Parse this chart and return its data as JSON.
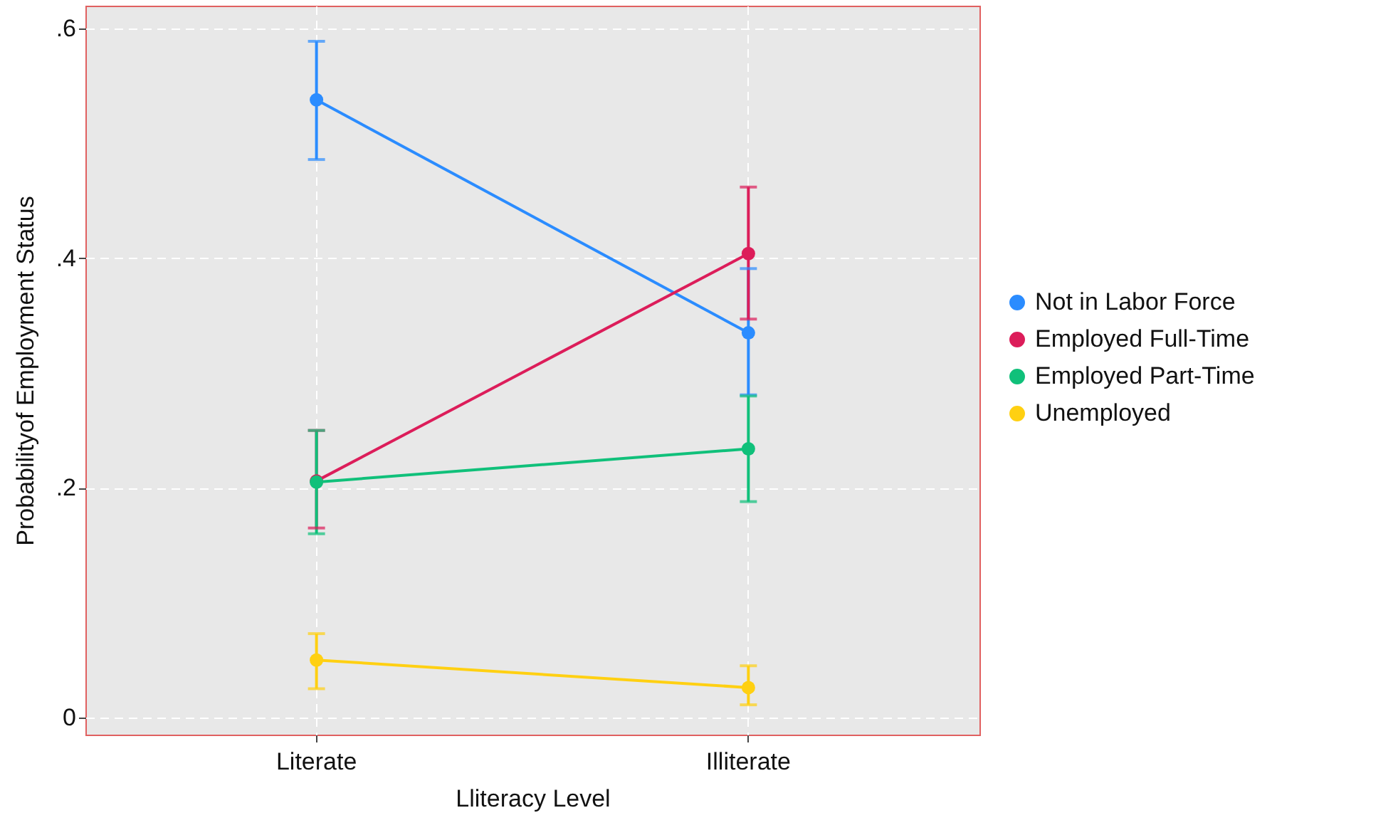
{
  "chart_data": {
    "type": "line",
    "xlabel": "Lliteracy Level",
    "ylabel": "Probabilityof Employment Status",
    "categories": [
      "Literate",
      "Illiterate"
    ],
    "series": [
      {
        "name": "Not in Labor Force",
        "color": "#2b8cff",
        "values": [
          0.538,
          0.335
        ],
        "errors": [
          [
            0.486,
            0.589
          ],
          [
            0.281,
            0.391
          ]
        ]
      },
      {
        "name": "Employed Full-Time",
        "color": "#dc1d5a",
        "values": [
          0.206,
          0.404
        ],
        "errors": [
          [
            0.165,
            0.25
          ],
          [
            0.347,
            0.462
          ]
        ]
      },
      {
        "name": "Employed Part-Time",
        "color": "#10c07a",
        "values": [
          0.205,
          0.234
        ],
        "errors": [
          [
            0.16,
            0.25
          ],
          [
            0.188,
            0.28
          ]
        ]
      },
      {
        "name": "Unemployed",
        "color": "#ffd012",
        "values": [
          0.05,
          0.026
        ],
        "errors": [
          [
            0.025,
            0.073
          ],
          [
            0.011,
            0.045
          ]
        ]
      }
    ],
    "ylim": [
      -0.015,
      0.62
    ],
    "yticks": [
      {
        "value": 0,
        "label": "0"
      },
      {
        "value": 0.2,
        "label": ".2"
      },
      {
        "value": 0.4,
        "label": ".4"
      },
      {
        "value": 0.6,
        "label": ".6"
      }
    ],
    "grid": true,
    "legend": "right",
    "marker": "circle",
    "line_style": "solid"
  }
}
